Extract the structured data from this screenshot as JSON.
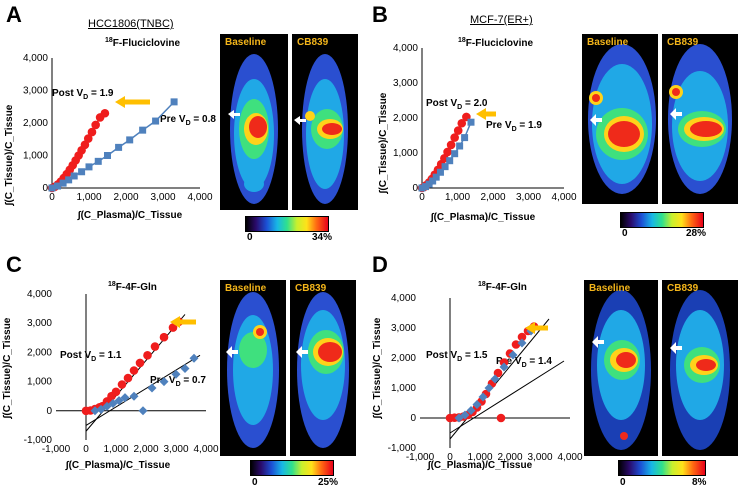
{
  "colors": {
    "post": "#ef1d1d",
    "pre": "#4f81bd",
    "arrow": "#ffbf00",
    "image_label": "#f3b51a"
  },
  "panels": [
    {
      "letter": "A",
      "title": "HCC1806(TNBC)",
      "tracer_sup": "18",
      "tracer": "F-Fluciclovine",
      "post_label": "Post V",
      "post_sub": "D",
      "post_value": " = 1.9",
      "pre_label": "Pre V",
      "pre_sub": "D",
      "pre_value": " = 0.8",
      "ylabel": "∫(C_Tissue)/C_Tissue",
      "xlabel": "∫(C_Plasma)/C_Tissue",
      "image_left": "Baseline",
      "image_right": "CB839",
      "scale_min": "0",
      "scale_max": "34%"
    },
    {
      "letter": "B",
      "title": "MCF-7(ER+)",
      "tracer_sup": "18",
      "tracer": "F-Fluciclovine",
      "post_label": "Post V",
      "post_sub": "D",
      "post_value": " = 2.0",
      "pre_label": "Pre V",
      "pre_sub": "D",
      "pre_value": " = 1.9",
      "ylabel": "∫(C_Tissue)/C_Tissue",
      "xlabel": "∫(C_Plasma)/C_Tissue",
      "image_left": "Baseline",
      "image_right": "CB839",
      "scale_min": "0",
      "scale_max": "28%"
    },
    {
      "letter": "C",
      "title": "",
      "tracer_sup": "18",
      "tracer": "F-4F-Gln",
      "post_label": "Post V",
      "post_sub": "D",
      "post_value": " = 1.1",
      "pre_label": "Pre V",
      "pre_sub": "D",
      "pre_value": " = 0.7",
      "ylabel": "∫(C_Tissue)/C_Tissue",
      "xlabel": "∫(C_Plasma)/C_Tissue",
      "image_left": "Baseline",
      "image_right": "CB839",
      "scale_min": "0",
      "scale_max": "25%"
    },
    {
      "letter": "D",
      "title": "",
      "tracer_sup": "18",
      "tracer": "F-4F-Gln",
      "post_label": "Post V",
      "post_sub": "D",
      "post_value": " = 1.5",
      "pre_label": "Pre V",
      "pre_sub": "D",
      "pre_value": " = 1.4",
      "ylabel": "∫(C_Tissue)/C_Tissue",
      "xlabel": "∫(C_Plasma)/C_Tissue",
      "image_left": "Baseline",
      "image_right": "CB839",
      "scale_min": "0",
      "scale_max": "8%"
    }
  ],
  "chart_data": [
    {
      "type": "scatter",
      "xlim": [
        0,
        4000
      ],
      "ylim": [
        0,
        4000
      ],
      "xticks": [
        "0",
        "1,000",
        "2,000",
        "3,000",
        "4,000"
      ],
      "yticks": [
        "0",
        "1,000",
        "2,000",
        "3,000",
        "4,000"
      ],
      "series": [
        {
          "name": "Post",
          "marker": "circle",
          "x": [
            0,
            80,
            160,
            240,
            320,
            400,
            480,
            560,
            640,
            720,
            800,
            890,
            980,
            1080,
            1180,
            1300,
            1430
          ],
          "y": [
            0,
            40,
            110,
            200,
            310,
            430,
            560,
            700,
            850,
            1000,
            1160,
            1330,
            1520,
            1720,
            1940,
            2170,
            2300
          ]
        },
        {
          "name": "Pre",
          "marker": "square",
          "x": [
            0,
            150,
            300,
            450,
            600,
            800,
            1000,
            1250,
            1500,
            1800,
            2100,
            2450,
            2800,
            3300
          ],
          "y": [
            0,
            60,
            150,
            250,
            370,
            500,
            650,
            820,
            1000,
            1250,
            1480,
            1780,
            2060,
            2650
          ]
        }
      ]
    },
    {
      "type": "scatter",
      "xlim": [
        0,
        4000
      ],
      "ylim": [
        0,
        4000
      ],
      "xticks": [
        "0",
        "1,000",
        "2,000",
        "3,000",
        "4,000"
      ],
      "yticks": [
        "0",
        "1,000",
        "2,000",
        "3,000",
        "4,000"
      ],
      "series": [
        {
          "name": "Post",
          "marker": "circle",
          "x": [
            0,
            60,
            120,
            200,
            280,
            360,
            450,
            540,
            630,
            720,
            820,
            920,
            1020,
            1120,
            1250
          ],
          "y": [
            0,
            30,
            80,
            160,
            260,
            380,
            520,
            680,
            850,
            1030,
            1230,
            1440,
            1640,
            1850,
            2030
          ]
        },
        {
          "name": "Pre",
          "marker": "square",
          "x": [
            0,
            100,
            200,
            300,
            400,
            520,
            650,
            780,
            920,
            1060,
            1200,
            1380
          ],
          "y": [
            0,
            40,
            110,
            200,
            310,
            450,
            610,
            780,
            980,
            1200,
            1440,
            1880
          ]
        }
      ]
    },
    {
      "type": "scatter",
      "xlim": [
        -1000,
        4000
      ],
      "ylim": [
        -1000,
        4000
      ],
      "xticks": [
        "-1,000",
        "0",
        "1,000",
        "2,000",
        "3,000",
        "4,000"
      ],
      "yticks": [
        "-1,000",
        "0",
        "1,000",
        "2,000",
        "3,000",
        "4,000"
      ],
      "series": [
        {
          "name": "Post",
          "marker": "circle",
          "x": [
            0,
            150,
            300,
            450,
            550,
            700,
            850,
            1000,
            1200,
            1400,
            1600,
            1800,
            2050,
            2300,
            2600,
            2900,
            3100
          ],
          "y": [
            0,
            10,
            60,
            120,
            160,
            320,
            500,
            650,
            900,
            1120,
            1380,
            1640,
            1900,
            2200,
            2520,
            2850,
            3050
          ]
        },
        {
          "name": "Pre",
          "marker": "diamond",
          "x": [
            300,
            500,
            700,
            900,
            1100,
            1300,
            1600,
            1900,
            2200,
            2600,
            3000,
            3300,
            3600
          ],
          "y": [
            0,
            50,
            150,
            250,
            350,
            450,
            500,
            0,
            780,
            1000,
            1250,
            1450,
            1800
          ]
        }
      ]
    },
    {
      "type": "scatter",
      "xlim": [
        -1000,
        4000
      ],
      "ylim": [
        -1000,
        4000
      ],
      "xticks": [
        "-1,000",
        "0",
        "1,000",
        "2,000",
        "3,000",
        "4,000"
      ],
      "yticks": [
        "-1,000",
        "0",
        "1,000",
        "2,000",
        "3,000",
        "4,000"
      ],
      "series": [
        {
          "name": "Post",
          "marker": "circle",
          "x": [
            0,
            150,
            300,
            450,
            600,
            750,
            900,
            1050,
            1200,
            1400,
            1600,
            1800,
            2000,
            2200,
            2400,
            2600,
            2800,
            1700
          ],
          "y": [
            0,
            10,
            20,
            50,
            100,
            200,
            350,
            550,
            800,
            1150,
            1500,
            1850,
            2150,
            2450,
            2700,
            2900,
            3050,
            0
          ]
        },
        {
          "name": "Pre",
          "marker": "diamond",
          "x": [
            300,
            500,
            700,
            900,
            1100,
            1300,
            1500,
            1800,
            2100,
            2400,
            2700
          ],
          "y": [
            0,
            100,
            250,
            450,
            700,
            1000,
            1300,
            1700,
            2100,
            2500,
            2900
          ]
        }
      ]
    }
  ]
}
